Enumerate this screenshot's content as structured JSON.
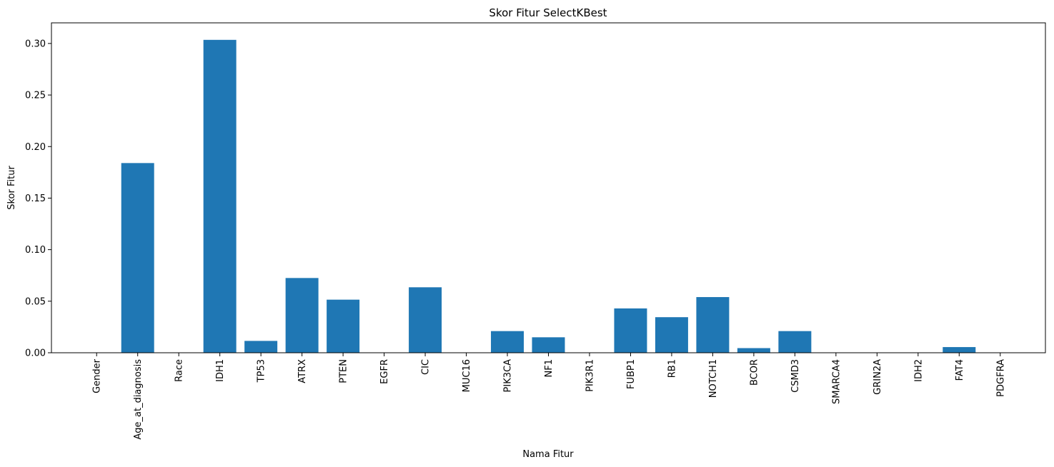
{
  "chart_data": {
    "type": "bar",
    "title": "Skor Fitur SelectKBest",
    "xlabel": "Nama Fitur",
    "ylabel": "Skor Fitur",
    "categories": [
      "Gender",
      "Age_at_diagnosis",
      "Race",
      "IDH1",
      "TP53",
      "ATRX",
      "PTEN",
      "EGFR",
      "CIC",
      "MUC16",
      "PIK3CA",
      "NF1",
      "PIK3R1",
      "FUBP1",
      "RB1",
      "NOTCH1",
      "BCOR",
      "CSMD3",
      "SMARCA4",
      "GRIN2A",
      "IDH2",
      "FAT4",
      "PDGFRA"
    ],
    "values": [
      0.0,
      0.184,
      0.0,
      0.3035,
      0.0115,
      0.0725,
      0.0515,
      0.0,
      0.0635,
      0.0,
      0.021,
      0.015,
      0.0,
      0.043,
      0.0345,
      0.054,
      0.0045,
      0.021,
      0.0,
      0.0,
      0.0,
      0.0055,
      0.0
    ],
    "ylim": [
      0,
      0.32
    ],
    "yticks": [
      0.0,
      0.05,
      0.1,
      0.15,
      0.2,
      0.25,
      0.3
    ],
    "ytick_labels": [
      "0.00",
      "0.05",
      "0.10",
      "0.15",
      "0.20",
      "0.25",
      "0.30"
    ],
    "bar_color": "#1f77b4",
    "grid": false,
    "legend": false
  }
}
